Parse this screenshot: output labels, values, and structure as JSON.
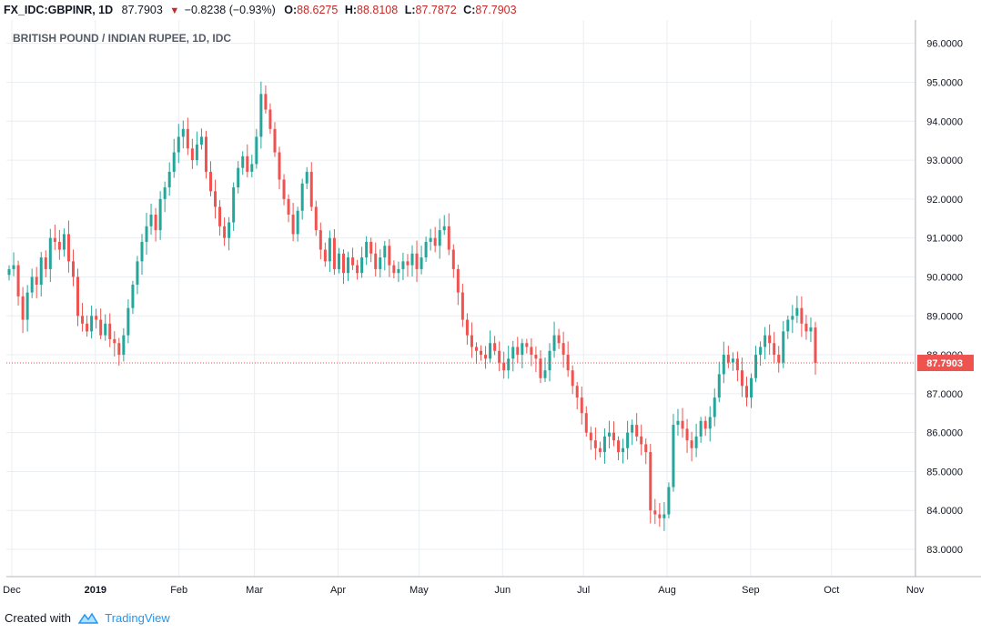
{
  "header": {
    "symbol": "FX_IDC:GBPINR, 1D",
    "last": "87.7903",
    "direction": "down-triangle-icon",
    "change": "−0.8238 (−0.93%)",
    "open_label": "O:",
    "open": "88.6275",
    "high_label": "H:",
    "high": "88.8108",
    "low_label": "L:",
    "low": "87.7872",
    "close_label": "C:",
    "close": "87.7903"
  },
  "footer": {
    "created_with": "Created with",
    "brand": "TradingView",
    "brand_icon": "tradingview-logo-icon"
  },
  "colors": {
    "up": "#26a69a",
    "down": "#ef5350",
    "grid": "#e9eef2",
    "axis": "#b2b5be",
    "label_bg": "#ef5350"
  },
  "chart_data": {
    "type": "candlestick",
    "title": "BRITISH POUND / INDIAN RUPEE, 1D, IDC",
    "last_price_label": "87.7903",
    "last_price": 87.7903,
    "y_range": [
      82.3,
      96.6
    ],
    "y_ticks": [
      "96.0000",
      "95.0000",
      "94.0000",
      "93.0000",
      "92.0000",
      "91.0000",
      "90.0000",
      "89.0000",
      "88.0000",
      "87.0000",
      "86.0000",
      "85.0000",
      "84.0000",
      "83.0000"
    ],
    "x_ticks": [
      "Dec",
      "2019",
      "Feb",
      "Mar",
      "Apr",
      "May",
      "Jun",
      "Jul",
      "Aug",
      "Sep",
      "Oct",
      "Nov"
    ],
    "date_range": [
      "2018-11-30",
      "2019-09-25"
    ],
    "grid": true,
    "series": [
      {
        "values": [
          90.2,
          90.3,
          89.5,
          88.9,
          89.6,
          90.0,
          89.8,
          90.5,
          90.2,
          91.0,
          90.9,
          90.7,
          91.1,
          90.4,
          90.0,
          89.0,
          88.8,
          88.6,
          89.0,
          88.9,
          88.5,
          88.8,
          88.4,
          88.3,
          88.0,
          88.5,
          89.2,
          89.8,
          90.4,
          90.9,
          91.3,
          91.6,
          91.2,
          92.0,
          92.3,
          92.7,
          93.2,
          93.6,
          93.8,
          93.3,
          93.0,
          93.4,
          93.6,
          92.7,
          92.2,
          91.8,
          91.3,
          91.0,
          91.4,
          92.3,
          92.8,
          93.1,
          92.7,
          92.9,
          93.6,
          94.7,
          94.3,
          93.8,
          93.2,
          92.5,
          92.0,
          91.6,
          91.1,
          91.7,
          92.4,
          92.7,
          91.8,
          91.2,
          90.7,
          90.4,
          91.0,
          90.2,
          90.6,
          90.1,
          90.5,
          90.3,
          90.1,
          90.5,
          90.9,
          90.6,
          90.2,
          90.5,
          90.8,
          90.3,
          90.1,
          90.2,
          90.4,
          90.3,
          90.6,
          90.2,
          90.5,
          90.9,
          91.0,
          90.8,
          91.2,
          91.3,
          90.7,
          90.2,
          89.6,
          88.9,
          88.5,
          88.2,
          88.1,
          88.0,
          87.9,
          88.3,
          88.1,
          87.8,
          87.6,
          87.9,
          88.2,
          88.0,
          88.3,
          88.2,
          88.0,
          87.9,
          87.4,
          87.6,
          88.1,
          88.5,
          88.3,
          88.0,
          87.6,
          87.2,
          86.9,
          86.5,
          86.0,
          85.8,
          85.6,
          85.5,
          85.9,
          86.0,
          85.8,
          85.5,
          85.6,
          86.0,
          86.2,
          85.9,
          85.7,
          85.5,
          84.0,
          83.9,
          83.8,
          83.9,
          84.6,
          86.2,
          86.3,
          86.1,
          85.8,
          85.6,
          85.9,
          86.3,
          86.1,
          86.4,
          86.9,
          87.5,
          88.0,
          87.8,
          87.9,
          87.6,
          87.2,
          86.9,
          87.4,
          88.0,
          88.2,
          88.5,
          88.3,
          88.0,
          87.8,
          88.6,
          88.9,
          89.0,
          89.2,
          88.8,
          88.6,
          88.7,
          87.79
        ]
      }
    ]
  }
}
